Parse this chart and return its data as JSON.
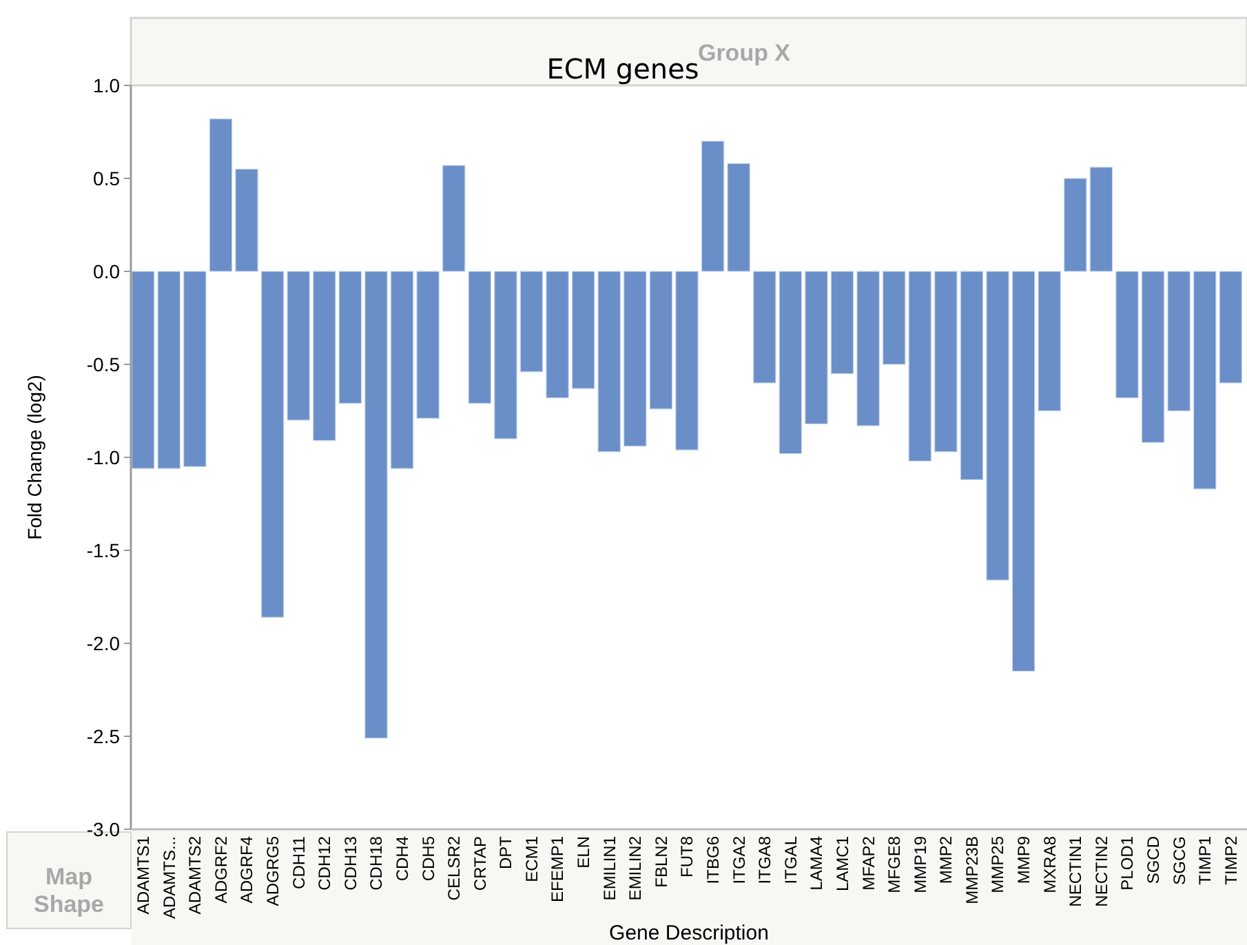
{
  "chart_data": {
    "type": "bar",
    "title": "ECM genes",
    "xlabel": "Gene Description",
    "ylabel": "Fold Change (log2)",
    "annotations": [
      "Group X",
      "Map Shape"
    ],
    "categories": [
      "ADAMTS1",
      "ADAMTS...",
      "ADAMTS2",
      "ADGRF2",
      "ADGRF4",
      "ADGRG5",
      "CDH11",
      "CDH12",
      "CDH13",
      "CDH18",
      "CDH4",
      "CDH5",
      "CELSR2",
      "CRTAP",
      "DPT",
      "ECM1",
      "EFEMP1",
      "ELN",
      "EMILIN1",
      "EMILIN2",
      "FBLN2",
      "FUT8",
      "ITBG6",
      "ITGA2",
      "ITGA8",
      "ITGAL",
      "LAMA4",
      "LAMC1",
      "MFAP2",
      "MFGE8",
      "MMP19",
      "MMP2",
      "MMP23B",
      "MMP25",
      "MMP9",
      "MXRA8",
      "NECTIN1",
      "NECTIN2",
      "PLOD1",
      "SGCD",
      "SGCG",
      "TIMP1",
      "TIMP2"
    ],
    "values": [
      -1.06,
      -1.06,
      -1.05,
      0.82,
      0.55,
      -1.86,
      -0.8,
      -0.91,
      -0.71,
      -2.51,
      -1.06,
      -0.79,
      0.57,
      -0.71,
      -0.9,
      -0.54,
      -0.68,
      -0.63,
      -0.97,
      -0.94,
      -0.74,
      -0.96,
      0.7,
      0.58,
      -0.6,
      -0.98,
      -0.82,
      -0.55,
      -0.83,
      -0.5,
      -1.02,
      -0.97,
      -1.12,
      -1.66,
      -2.15,
      -0.75,
      0.5,
      0.56,
      -0.68,
      -0.92,
      -0.75,
      -1.17,
      -0.6
    ],
    "color": "#6a8ec8",
    "ylim": [
      -3,
      1
    ],
    "yticks": [
      {
        "value": 1,
        "label": "1.0"
      },
      {
        "value": 0.5,
        "label": "0.5"
      },
      {
        "value": 0,
        "label": "0.0"
      },
      {
        "value": -0.5,
        "label": "-0.5"
      },
      {
        "value": -1,
        "label": "-1.0"
      },
      {
        "value": -1.5,
        "label": "-1.5"
      },
      {
        "value": -2,
        "label": "-2.0"
      },
      {
        "value": -2.5,
        "label": "-2.5"
      },
      {
        "value": -3,
        "label": "-3.0"
      }
    ],
    "grid": false
  }
}
